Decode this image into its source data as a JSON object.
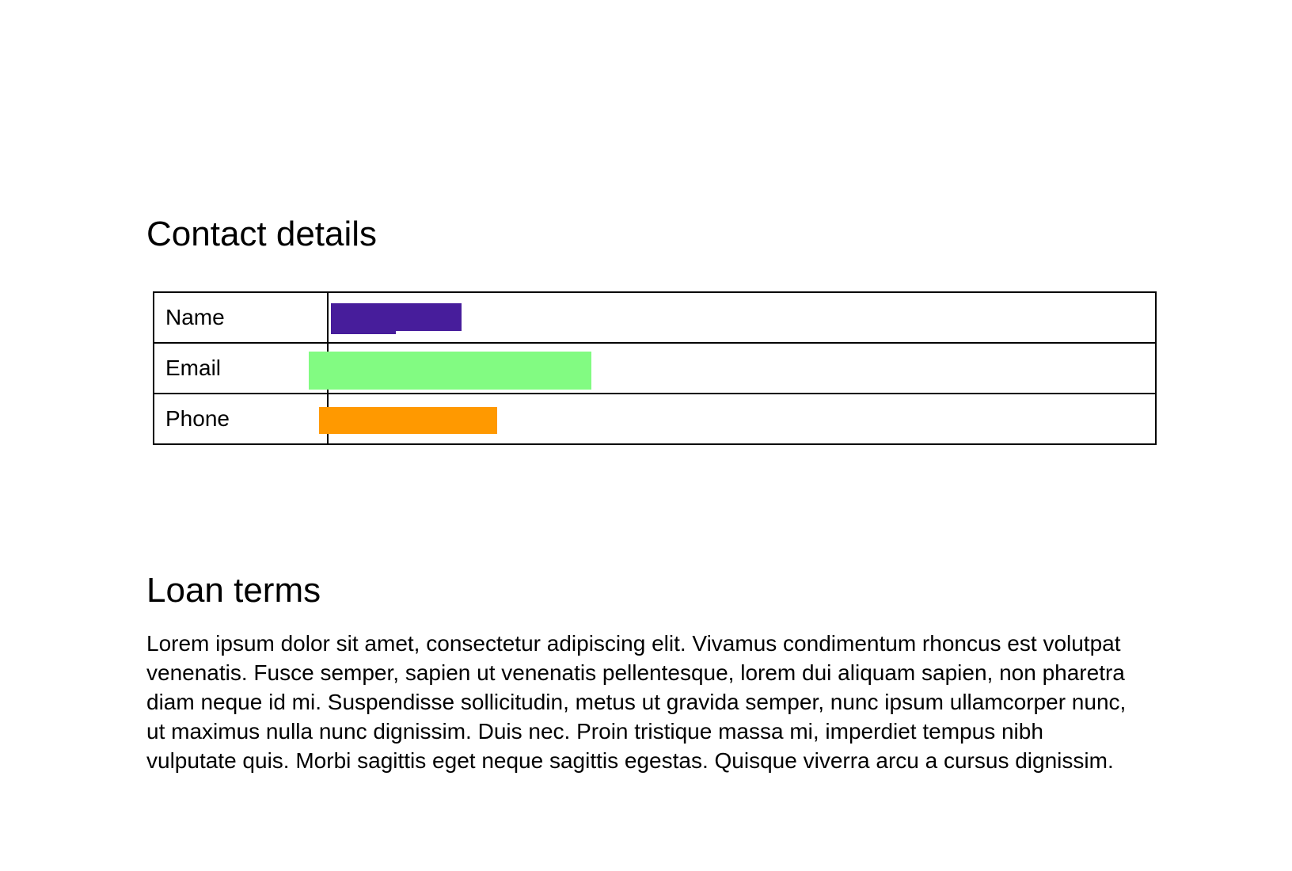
{
  "page": {
    "background": "#ffffff",
    "text_color": "#000000"
  },
  "contact_section": {
    "title": "Contact details",
    "table": {
      "border_color": "#000000",
      "rows": [
        {
          "label": "Name",
          "redaction_color": "#471d9b"
        },
        {
          "label": "Email",
          "redaction_color": "#82fb82"
        },
        {
          "label": "Phone",
          "redaction_color": "#ff9900"
        }
      ]
    }
  },
  "loan_section": {
    "title": "Loan terms",
    "paragraph": "Lorem ipsum dolor sit amet, consectetur adipiscing elit. Vivamus condimentum rhoncus est volutpat venenatis. Fusce semper, sapien ut venenatis pellentesque, lorem dui aliquam sapien, non pharetra diam neque id mi. Suspendisse sollicitudin, metus ut gravida semper, nunc ipsum ullamcorper nunc, ut maximus nulla nunc dignissim. Duis nec. Proin tristique massa mi, imperdiet tempus nibh vulputate quis. Morbi sagittis eget neque sagittis egestas. Quisque viverra arcu a cursus dignissim."
  }
}
